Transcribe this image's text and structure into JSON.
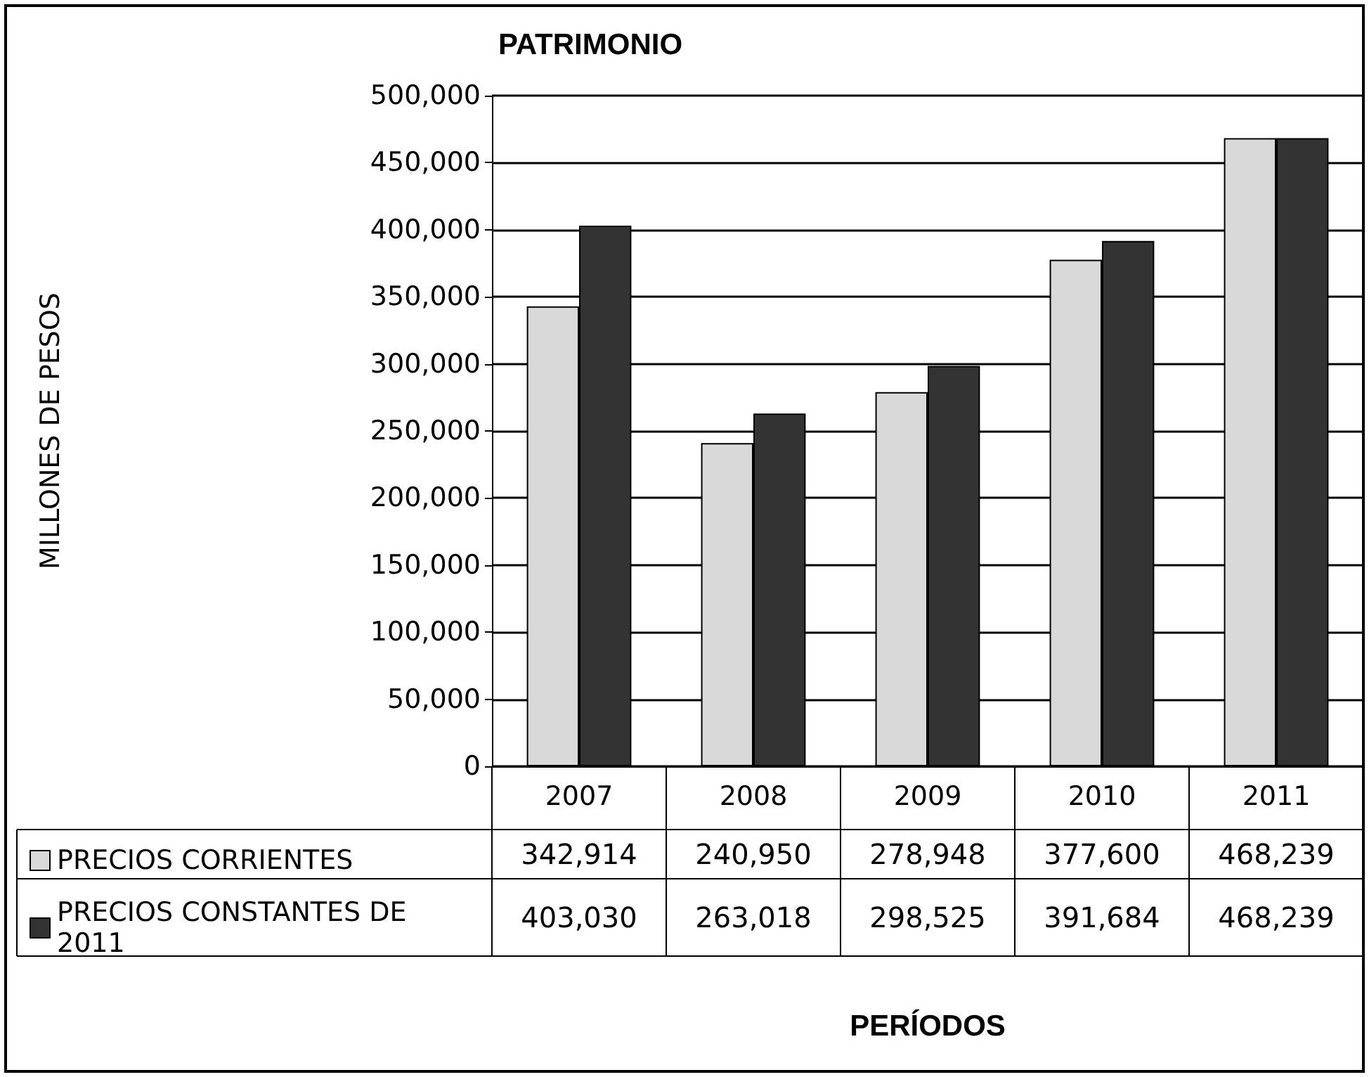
{
  "chart_data": {
    "type": "bar",
    "title": "PATRIMONIO",
    "annotations": [
      "PERÍODOS",
      "MILLONES DE PESOS"
    ],
    "categories": [
      "2007",
      "2008",
      "2009",
      "2010",
      "2011"
    ],
    "series": [
      {
        "name": "PRECIOS CORRIENTES",
        "color": "#d9d9d9",
        "values": [
          342914,
          240950,
          278948,
          377600,
          468239
        ],
        "value_labels": [
          "342,914",
          "240,950",
          "278,948",
          "377,600",
          "468,239"
        ]
      },
      {
        "name": "PRECIOS CONSTANTES DE 2011",
        "color": "#333333",
        "values": [
          403030,
          263018,
          298525,
          391684,
          468239
        ],
        "value_labels": [
          "403,030",
          "263,018",
          "298,525",
          "391,684",
          "468,239"
        ]
      }
    ],
    "ylim": [
      0,
      500000
    ],
    "yticks": [
      0,
      {
        "value": 50000,
        "label": "50,000"
      },
      {
        "value": 100000,
        "label": "100,000"
      },
      {
        "value": 150000,
        "label": "150,000"
      },
      {
        "value": 200000,
        "label": "200,000"
      },
      {
        "value": 250000,
        "label": "250,000"
      },
      {
        "value": 300000,
        "label": "300,000"
      },
      {
        "value": 350000,
        "label": "350,000"
      },
      {
        "value": 400000,
        "label": "400,000"
      },
      {
        "value": 450000,
        "label": "450,000"
      },
      {
        "value": 500000,
        "label": "500,000"
      }
    ],
    "grid": "y",
    "legend": "bottom"
  }
}
